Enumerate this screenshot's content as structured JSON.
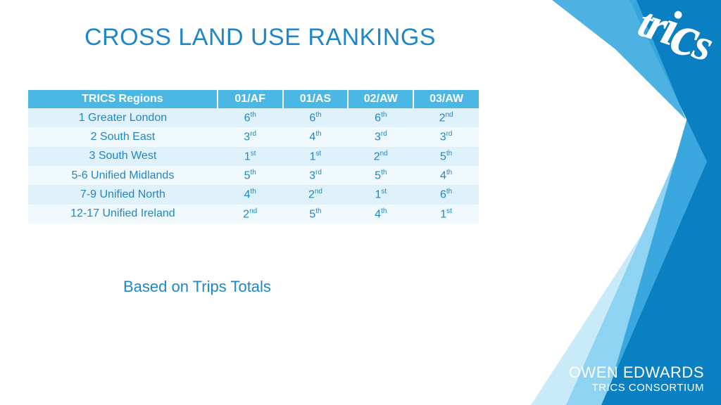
{
  "title": "CROSS LAND USE RANKINGS",
  "subtitle": "Based on Trips Totals",
  "colors": {
    "accent": "#1f87c7",
    "header_bg": "#4bb7e5",
    "row_odd": "#dff1fa",
    "row_even": "#f0f9fd",
    "bg_tri_dark": "#0a80c2",
    "bg_tri_mid": "#3aa8de",
    "bg_tri_light": "#8ed4f2",
    "bg_tri_pale": "#c9eaf8",
    "white": "#ffffff"
  },
  "table": {
    "columns": [
      "TRICS Regions",
      "01/AF",
      "01/AS",
      "02/AW",
      "03/AW"
    ],
    "rows": [
      {
        "region": "1 Greater London",
        "vals": [
          [
            "6",
            "th"
          ],
          [
            "6",
            "th"
          ],
          [
            "6",
            "th"
          ],
          [
            "2",
            "nd"
          ]
        ]
      },
      {
        "region": "2 South East",
        "vals": [
          [
            "3",
            "rd"
          ],
          [
            "4",
            "th"
          ],
          [
            "3",
            "rd"
          ],
          [
            "3",
            "rd"
          ]
        ]
      },
      {
        "region": "3 South West",
        "vals": [
          [
            "1",
            "st"
          ],
          [
            "1",
            "st"
          ],
          [
            "2",
            "nd"
          ],
          [
            "5",
            "th"
          ]
        ]
      },
      {
        "region": "5-6 Unified Midlands",
        "vals": [
          [
            "5",
            "th"
          ],
          [
            "3",
            "rd"
          ],
          [
            "5",
            "th"
          ],
          [
            "4",
            "th"
          ]
        ]
      },
      {
        "region": "7-9 Unified North",
        "vals": [
          [
            "4",
            "th"
          ],
          [
            "2",
            "nd"
          ],
          [
            "1",
            "st"
          ],
          [
            "6",
            "th"
          ]
        ]
      },
      {
        "region": "12-17 Unified Ireland",
        "vals": [
          [
            "2",
            "nd"
          ],
          [
            "5",
            "th"
          ],
          [
            "4",
            "th"
          ],
          [
            "1",
            "st"
          ]
        ]
      }
    ]
  },
  "footer": {
    "name": "OWEN EDWARDS",
    "org": "TRICS CONSORTIUM"
  },
  "logo": "trics"
}
